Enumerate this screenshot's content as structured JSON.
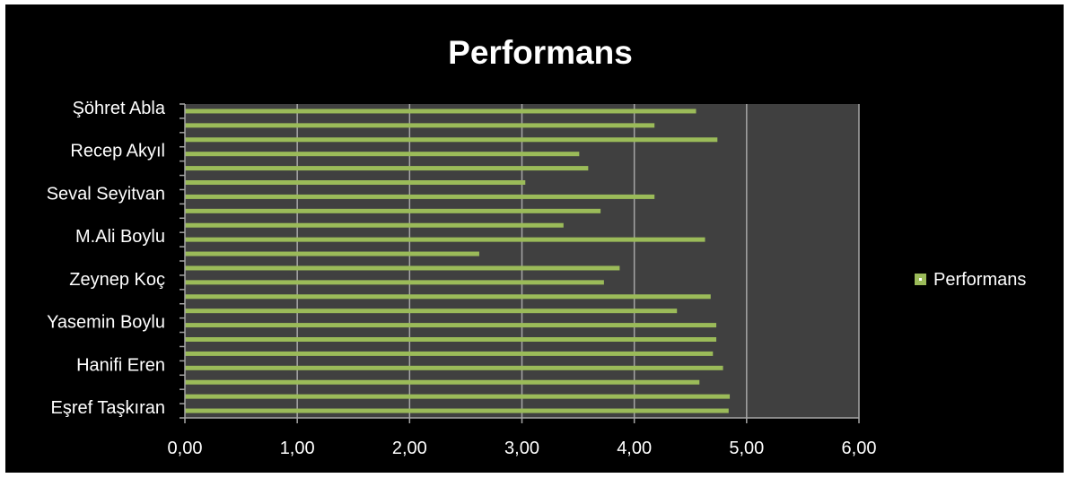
{
  "chart_data": {
    "type": "bar",
    "orientation": "horizontal",
    "title": "Performans",
    "xlabel": "",
    "ylabel": "",
    "xlim": [
      0,
      6
    ],
    "x_ticks": [
      "0,00",
      "1,00",
      "2,00",
      "3,00",
      "4,00",
      "5,00",
      "6,00"
    ],
    "grid": true,
    "legend_position": "right",
    "category_labels_shown": [
      "Eşref Taşkıran",
      "Hanifi Eren",
      "Yasemin Boylu",
      "Zeynep Koç",
      "M.Ali Boylu",
      "Seval Seyitvan",
      "Recep Akyıl",
      "Şöhret Abla"
    ],
    "series": [
      {
        "name": "Performans",
        "color": "#9bbb59",
        "values": [
          4.84,
          4.85,
          4.58,
          4.79,
          4.7,
          4.73,
          4.73,
          4.38,
          4.68,
          3.73,
          3.87,
          2.62,
          4.63,
          3.37,
          3.7,
          4.18,
          3.03,
          3.59,
          3.51,
          4.74,
          4.18,
          4.55
        ]
      }
    ],
    "colors": {
      "background": "#000000",
      "plot_area": "#404040",
      "gridline": "#a6a6a6",
      "text": "#ffffff",
      "bar": "#9bbb59"
    }
  }
}
